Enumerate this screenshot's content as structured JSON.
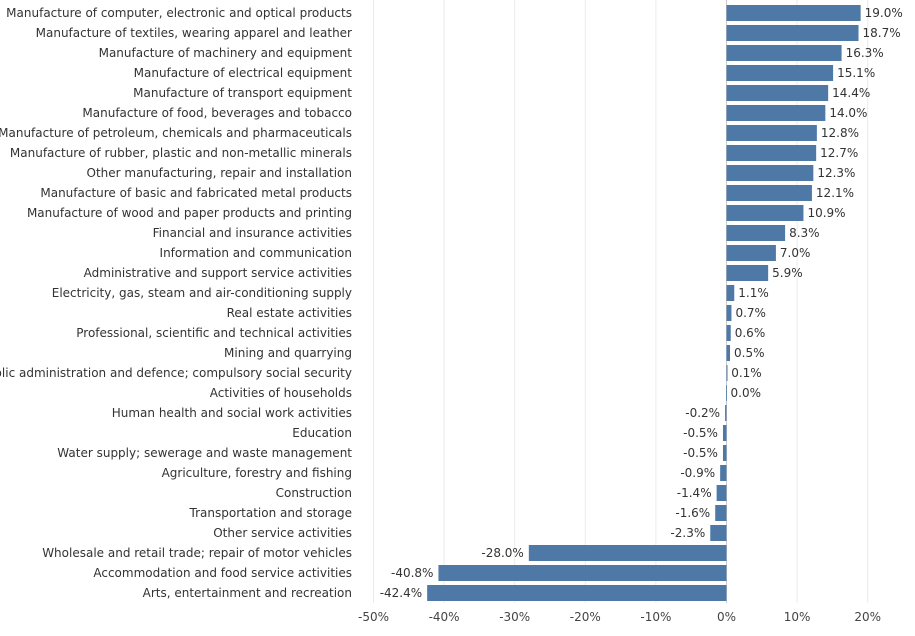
{
  "chart_data": {
    "type": "bar",
    "orientation": "horizontal",
    "categories": [
      "Manufacture of computer, electronic and optical products",
      "Manufacture of textiles, wearing apparel and leather",
      "Manufacture of machinery and equipment",
      "Manufacture of electrical equipment",
      "Manufacture of transport equipment",
      "Manufacture of food, beverages and tobacco",
      "Manufacture of petroleum, chemicals and pharmaceuticals",
      "Manufacture of rubber, plastic and non-metallic minerals",
      "Other manufacturing, repair and installation",
      "Manufacture of basic and fabricated metal products",
      "Manufacture of wood and paper products and printing",
      "Financial and insurance activities",
      "Information and communication",
      "Administrative and support service activities",
      "Electricity, gas, steam and air-conditioning supply",
      "Real estate activities",
      "Professional, scientific and technical activities",
      "Mining and quarrying",
      "Public administration and defence; compulsory social security",
      "Activities of households",
      "Human health and social work activities",
      "Education",
      "Water supply; sewerage and waste management",
      "Agriculture, forestry and fishing",
      "Construction",
      "Transportation and storage",
      "Other service activities",
      "Wholesale and retail trade; repair of motor vehicles",
      "Accommodation and food service activities",
      "Arts, entertainment and recreation"
    ],
    "values": [
      19.0,
      18.7,
      16.3,
      15.1,
      14.4,
      14.0,
      12.8,
      12.7,
      12.3,
      12.1,
      10.9,
      8.3,
      7.0,
      5.9,
      1.1,
      0.7,
      0.6,
      0.5,
      0.1,
      0.0,
      -0.2,
      -0.5,
      -0.5,
      -0.9,
      -1.4,
      -1.6,
      -2.3,
      -28.0,
      -40.8,
      -42.4
    ],
    "value_labels": [
      "19.0%",
      "18.7%",
      "16.3%",
      "15.1%",
      "14.4%",
      "14.0%",
      "12.8%",
      "12.7%",
      "12.3%",
      "12.1%",
      "10.9%",
      "8.3%",
      "7.0%",
      "5.9%",
      "1.1%",
      "0.7%",
      "0.6%",
      "0.5%",
      "0.1%",
      "0.0%",
      "-0.2%",
      "-0.5%",
      "-0.5%",
      "-0.9%",
      "-1.4%",
      "-1.6%",
      "-2.3%",
      "-28.0%",
      "-40.8%",
      "-42.4%"
    ],
    "xlim": [
      -50,
      25
    ],
    "xticks": [
      -50,
      -40,
      -30,
      -20,
      -10,
      0,
      10,
      20
    ],
    "xtick_labels": [
      "-50%",
      "-40%",
      "-30%",
      "-20%",
      "-10%",
      "0%",
      "10%",
      "20%"
    ],
    "title": "",
    "xlabel": "",
    "ylabel": "",
    "grid": "vertical",
    "bar_color": "#4e79a7",
    "grid_color": "#ebebeb"
  }
}
